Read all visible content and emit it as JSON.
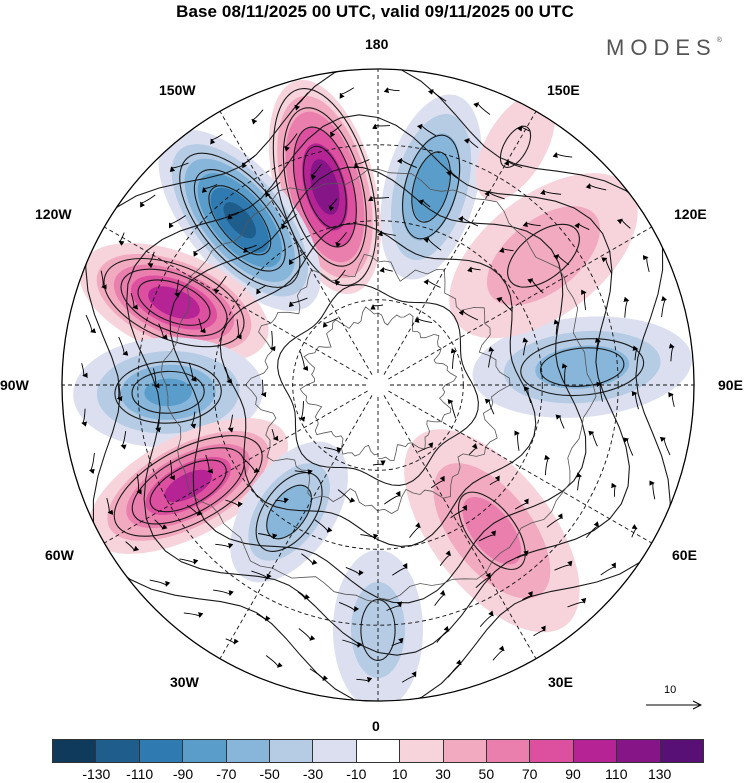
{
  "title": "Base 08/11/2025 00 UTC, valid 09/11/2025 00 UTC",
  "brand": {
    "name": "MODES",
    "mark": "®"
  },
  "longitude_labels": {
    "lon_180": "180",
    "lon_150e": "150E",
    "lon_120e": "120E",
    "lon_90e": "90E",
    "lon_60e": "60E",
    "lon_30e": "30E",
    "lon_0": "0",
    "lon_30w": "30W",
    "lon_60w": "60W",
    "lon_90w": "90W",
    "lon_120w": "120W",
    "lon_150w": "150W"
  },
  "reference_vector": {
    "label": "10"
  },
  "colorbar": {
    "colors": [
      "#0f3a5c",
      "#1e5d8c",
      "#2f7ab0",
      "#5a9dcb",
      "#88b6da",
      "#b6cce4",
      "#dcdff0",
      "#ffffff",
      "#f7d4dc",
      "#f2aac0",
      "#ea7fae",
      "#dd4f9f",
      "#b52395",
      "#861588",
      "#581076"
    ],
    "tick_labels": [
      "-130",
      "-110",
      "-90",
      "-70",
      "-50",
      "-30",
      "-10",
      "10",
      "30",
      "50",
      "70",
      "90",
      "110",
      "130"
    ]
  },
  "anomaly_centers": [
    {
      "id": "anom-1",
      "lon": 165,
      "value": -85
    },
    {
      "id": "anom-2",
      "lon": -165,
      "value": 125
    },
    {
      "id": "anom-3",
      "lon": -140,
      "value": -115
    },
    {
      "id": "anom-4",
      "lon": -112,
      "value": 100
    },
    {
      "id": "anom-5",
      "lon": -88,
      "value": -70
    },
    {
      "id": "anom-6",
      "lon": -62,
      "value": 95
    },
    {
      "id": "anom-7",
      "lon": -35,
      "value": -55
    },
    {
      "id": "anom-8",
      "lon": 0,
      "value": -40
    },
    {
      "id": "anom-9",
      "lon": 38,
      "value": 50
    },
    {
      "id": "anom-10",
      "lon": 95,
      "value": -60
    },
    {
      "id": "anom-11",
      "lon": 128,
      "value": 40
    },
    {
      "id": "anom-12",
      "lon": 150,
      "value": 20
    }
  ]
}
